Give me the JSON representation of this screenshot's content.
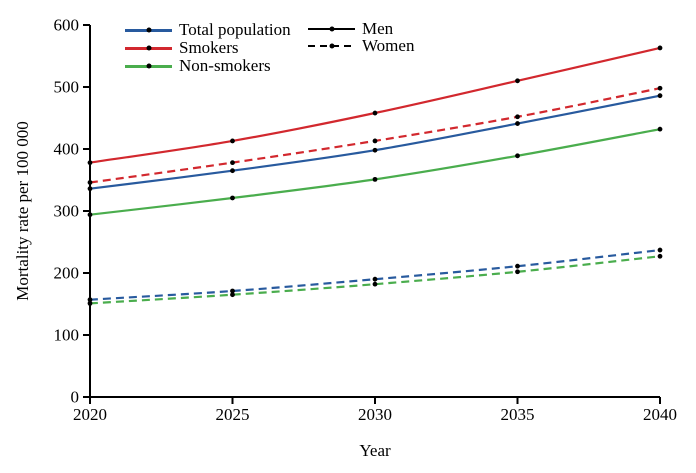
{
  "figure": {
    "background": "#ffffff",
    "text_color": "#000000",
    "axis_color": "#000000"
  },
  "legend": {
    "marker_color": "#000000",
    "color_entries": [
      {
        "label": "Total population",
        "color": "#285a9e",
        "dash": "solid"
      },
      {
        "label": "Smokers",
        "color": "#d2282e",
        "dash": "solid"
      },
      {
        "label": "Non-smokers",
        "color": "#4aad4d",
        "dash": "solid"
      }
    ],
    "style_entries": [
      {
        "label": "Men",
        "color": "#000000",
        "dash": "solid"
      },
      {
        "label": "Women",
        "color": "#000000",
        "dash": "dashed"
      }
    ]
  },
  "chart_data": {
    "type": "line",
    "title": "",
    "xlabel": "Year",
    "ylabel": "Mortality rate per 100 000",
    "x": [
      2020,
      2025,
      2030,
      2035,
      2040
    ],
    "xlim": [
      2020,
      2040
    ],
    "ylim": [
      0,
      600
    ],
    "xticks": [
      "2020",
      "2025",
      "2030",
      "2035",
      "2040"
    ],
    "yticks": [
      "0",
      "100",
      "200",
      "300",
      "400",
      "500",
      "600"
    ],
    "grid": false,
    "legend_position": "top-left-inside",
    "marker": "black-dot",
    "series": [
      {
        "name": "Non-smokers Men",
        "group": "Non-smokers",
        "sex": "Men",
        "color": "#4aad4d",
        "dash": "solid",
        "values": [
          294,
          321,
          351,
          389,
          432
        ]
      },
      {
        "name": "Non-smokers Women",
        "group": "Non-smokers",
        "sex": "Women",
        "color": "#4aad4d",
        "dash": "dashed",
        "values": [
          151,
          165,
          182,
          202,
          227
        ]
      },
      {
        "name": "Total population Men",
        "group": "Total population",
        "sex": "Men",
        "color": "#285a9e",
        "dash": "solid",
        "values": [
          336,
          365,
          398,
          441,
          486
        ]
      },
      {
        "name": "Total population Women",
        "group": "Total population",
        "sex": "Women",
        "color": "#285a9e",
        "dash": "dashed",
        "values": [
          157,
          171,
          190,
          211,
          237
        ]
      },
      {
        "name": "Smokers Men",
        "group": "Smokers",
        "sex": "Men",
        "color": "#d2282e",
        "dash": "solid",
        "values": [
          378,
          413,
          458,
          510,
          563
        ]
      },
      {
        "name": "Smokers Women",
        "group": "Smokers",
        "sex": "Women",
        "color": "#d2282e",
        "dash": "dashed",
        "values": [
          346,
          378,
          413,
          452,
          498
        ]
      }
    ]
  }
}
